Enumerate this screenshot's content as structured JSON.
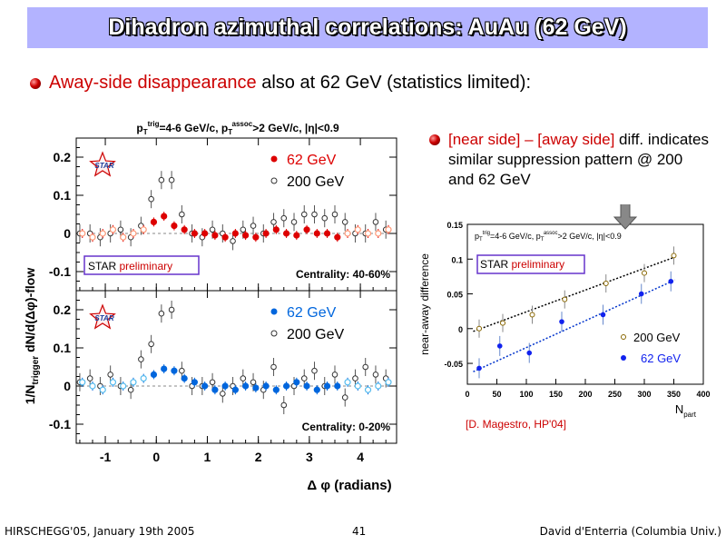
{
  "slide": {
    "title": "Dihadron azimuthal correlations: AuAu (62 GeV)",
    "bullet1": {
      "red": "Away-side disappearance",
      "rest": " also at 62 GeV (statistics limited):"
    },
    "bullet2": {
      "red": "[near side] – [away side]",
      "rest": " diff. indicates similar suppression pattern @ 200 and 62 GeV"
    }
  },
  "footer": {
    "left": "HIRSCHEGG'05, January 19th 2005",
    "center": "41",
    "right": "David d'Enterria (Columbia Univ.)"
  },
  "colors": {
    "red_marker": "#dd0000",
    "blue_marker": "#0066dd",
    "light_blue": "#55bbee",
    "title_bg": "#b3b3ff",
    "preliminary_border": "#6633cc"
  },
  "chart_data": [
    {
      "type": "scatter",
      "title": "p_T^trig=4-6 GeV/c, p_T^assoc>2 GeV/c, |η|<0.9",
      "ylabel": "1/N_trigger dN/d(Δφ)-flow",
      "xlabel": "Δ φ (radians)",
      "xlim": [
        -1.57,
        4.71
      ],
      "ylim": [
        -0.15,
        0.25
      ],
      "yticks": [
        "0.2",
        "0.1",
        "0",
        "-0.1"
      ],
      "xticks": [
        "-1",
        "0",
        "1",
        "2",
        "3",
        "4"
      ],
      "panel": "Centrality: 40-60%",
      "preliminary": [
        "STAR",
        " preliminary"
      ],
      "logo": "STAR",
      "series": [
        {
          "name": "62 GeV",
          "x": [
            -1.45,
            -1.25,
            -1.05,
            -0.85,
            -0.65,
            -0.45,
            -0.25,
            -0.05,
            0.15,
            0.35,
            0.55,
            0.75,
            0.95,
            1.15,
            1.35,
            1.55,
            1.75,
            1.95,
            2.15,
            2.35,
            2.55,
            2.75,
            2.95,
            3.15,
            3.35,
            3.55,
            3.75,
            3.95,
            4.15,
            4.35,
            4.55
          ],
          "y": [
            0.0,
            -0.01,
            0.0,
            0.01,
            -0.01,
            0.0,
            0.01,
            0.03,
            0.045,
            0.02,
            0.01,
            0.0,
            0.0,
            -0.005,
            -0.01,
            0.0,
            -0.005,
            -0.01,
            0.0,
            0.01,
            0.0,
            -0.005,
            0.01,
            0.0,
            0.0,
            -0.01,
            0.0,
            0.01,
            0.0,
            0.0,
            0.01
          ]
        },
        {
          "name": "200 GeV",
          "x": [
            -1.5,
            -1.3,
            -1.1,
            -0.9,
            -0.7,
            -0.5,
            -0.3,
            -0.1,
            0.1,
            0.3,
            0.5,
            0.7,
            0.9,
            1.1,
            1.3,
            1.5,
            1.7,
            1.9,
            2.1,
            2.3,
            2.5,
            2.7,
            2.9,
            3.1,
            3.3,
            3.5,
            3.7,
            3.9,
            4.1,
            4.3,
            4.5
          ],
          "y": [
            0.0,
            0.0,
            -0.01,
            0.0,
            0.01,
            -0.01,
            0.02,
            0.09,
            0.14,
            0.14,
            0.05,
            0.0,
            -0.01,
            0.01,
            0.0,
            -0.02,
            0.01,
            0.02,
            0.0,
            0.03,
            0.04,
            0.03,
            0.05,
            0.05,
            0.04,
            0.05,
            0.03,
            0.0,
            0.0,
            0.03,
            0.01
          ]
        }
      ]
    },
    {
      "type": "scatter",
      "xlabel": "Δ φ (radians)",
      "xlim": [
        -1.57,
        4.71
      ],
      "ylim": [
        -0.15,
        0.25
      ],
      "yticks": [
        "0.2",
        "0.1",
        "0",
        "-0.1"
      ],
      "panel": "Centrality:  0-20%",
      "logo": "STAR",
      "series": [
        {
          "name": "62 GeV",
          "x": [
            -1.45,
            -1.25,
            -1.05,
            -0.85,
            -0.65,
            -0.45,
            -0.25,
            -0.05,
            0.15,
            0.35,
            0.55,
            0.75,
            0.95,
            1.15,
            1.35,
            1.55,
            1.75,
            1.95,
            2.15,
            2.35,
            2.55,
            2.75,
            2.95,
            3.15,
            3.35,
            3.55,
            3.75,
            3.95,
            4.15,
            4.35,
            4.55
          ],
          "y": [
            0.01,
            0.0,
            -0.01,
            0.01,
            0.0,
            0.01,
            0.02,
            0.03,
            0.045,
            0.04,
            0.02,
            0.01,
            0.0,
            -0.01,
            0.0,
            -0.01,
            0.0,
            -0.005,
            0.0,
            -0.01,
            0.0,
            0.01,
            0.0,
            -0.01,
            0.0,
            0.0,
            0.01,
            0.0,
            -0.01,
            0.0,
            0.01
          ]
        },
        {
          "name": "200 GeV",
          "x": [
            -1.5,
            -1.3,
            -1.1,
            -0.9,
            -0.7,
            -0.5,
            -0.3,
            -0.1,
            0.1,
            0.3,
            0.5,
            0.7,
            0.9,
            1.1,
            1.3,
            1.5,
            1.7,
            1.9,
            2.1,
            2.3,
            2.5,
            2.7,
            2.9,
            3.1,
            3.3,
            3.5,
            3.7,
            3.9,
            4.1,
            4.3,
            4.5
          ],
          "y": [
            0.01,
            0.02,
            0.0,
            0.03,
            0.0,
            -0.01,
            0.07,
            0.11,
            0.19,
            0.2,
            0.04,
            0.0,
            0.0,
            0.01,
            -0.02,
            0.0,
            0.02,
            0.01,
            -0.01,
            0.05,
            -0.05,
            0.0,
            0.02,
            0.04,
            0.0,
            0.03,
            -0.03,
            0.02,
            0.05,
            0.03,
            0.02
          ]
        }
      ]
    },
    {
      "type": "scatter",
      "title": "p_T^trig=4-6 GeV/c, p_T^assoc>2 GeV/c, |η|<0.9",
      "ylabel": "near-away difference",
      "xlabel": "N_part",
      "xlim": [
        0,
        400
      ],
      "ylim": [
        -0.08,
        0.15
      ],
      "xticks": [
        "0",
        "50",
        "100",
        "150",
        "200",
        "250",
        "300",
        "350",
        "400"
      ],
      "yticks": [
        "0.15",
        "0.1",
        "0.05",
        "0",
        "-0.05"
      ],
      "preliminary": [
        "STAR",
        " preliminary"
      ],
      "reference": "[D. Magestro, HP'04]",
      "series": [
        {
          "name": "200 GeV",
          "x": [
            20,
            60,
            110,
            165,
            235,
            300,
            350
          ],
          "y": [
            0.0,
            0.008,
            0.02,
            0.042,
            0.065,
            0.08,
            0.105
          ]
        },
        {
          "name": "62 GeV",
          "x": [
            20,
            55,
            105,
            160,
            230,
            295,
            345
          ],
          "y": [
            -0.057,
            -0.025,
            -0.035,
            0.01,
            0.02,
            0.05,
            0.068
          ]
        }
      ]
    }
  ]
}
